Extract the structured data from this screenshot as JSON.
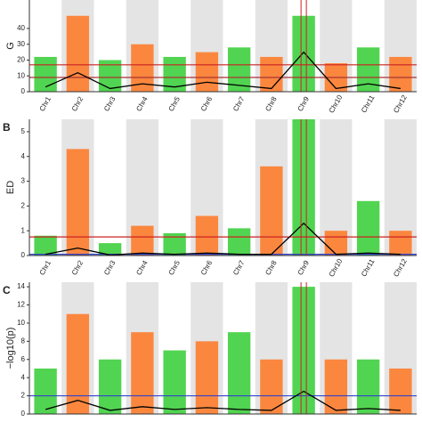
{
  "panels": [
    {
      "chart_data": {
        "type": "manhattan",
        "y_label": "G",
        "categories": [
          "Chr1",
          "Chr2",
          "Chr3",
          "Chr4",
          "Chr5",
          "Chr6",
          "Chr7",
          "Chr8",
          "Chr9",
          "Chr10",
          "Chr11",
          "Chr12"
        ],
        "values": [
          22,
          48,
          20,
          30,
          22,
          25,
          28,
          22,
          48,
          18,
          28,
          22
        ],
        "trend": [
          3,
          12,
          2,
          5,
          3,
          6,
          4,
          2,
          25,
          2,
          5,
          2
        ],
        "colors": [
          "#33cc33",
          "#ff7722"
        ],
        "thresholds": [
          {
            "value": 17,
            "color": "#cc2222"
          },
          {
            "value": 9,
            "color": "#aa3333"
          }
        ],
        "ylim": [
          0,
          58
        ],
        "yticks": [
          0,
          10,
          20,
          30,
          40
        ]
      }
    },
    {
      "letter": "B",
      "chart_data": {
        "type": "manhattan",
        "y_label": "ED",
        "categories": [
          "Chr1",
          "Chr2",
          "Chr3",
          "Chr4",
          "Chr5",
          "Chr6",
          "Chr7",
          "Chr8",
          "Chr9",
          "Chr10",
          "Chr11",
          "Chr12"
        ],
        "values": [
          0.8,
          4.3,
          0.5,
          1.2,
          0.9,
          1.6,
          1.1,
          3.6,
          5.5,
          1.0,
          2.2,
          1.0
        ],
        "trend": [
          0.05,
          0.3,
          0.02,
          0.1,
          0.05,
          0.1,
          0.05,
          0.05,
          1.3,
          0.05,
          0.1,
          0.05
        ],
        "colors": [
          "#33cc33",
          "#ff7722"
        ],
        "thresholds": [
          {
            "value": 0.75,
            "color": "#cc2222"
          },
          {
            "value": 0.05,
            "color": "#3344cc"
          }
        ],
        "ylim": [
          0,
          5.5
        ],
        "yticks": [
          0,
          1,
          2,
          3,
          4,
          5
        ]
      }
    },
    {
      "letter": "C",
      "chart_data": {
        "type": "manhattan",
        "y_label": "−log10(p)",
        "categories": [
          "Chr1",
          "Chr2",
          "Chr3",
          "Chr4",
          "Chr5",
          "Chr6",
          "Chr7",
          "Chr8",
          "Chr9",
          "Chr10",
          "Chr11",
          "Chr12"
        ],
        "values": [
          5,
          11,
          6,
          9,
          7,
          8,
          9,
          6,
          14,
          6,
          6,
          5
        ],
        "trend": [
          0.5,
          1.5,
          0.4,
          0.8,
          0.5,
          0.7,
          0.5,
          0.4,
          2.5,
          0.4,
          0.6,
          0.4
        ],
        "colors": [
          "#33cc33",
          "#ff7722"
        ],
        "thresholds": [
          {
            "value": 2,
            "color": "#3344cc"
          }
        ],
        "ylim": [
          0,
          14.5
        ],
        "yticks": [
          0,
          2,
          4,
          6,
          8,
          10,
          12,
          14
        ]
      }
    }
  ]
}
